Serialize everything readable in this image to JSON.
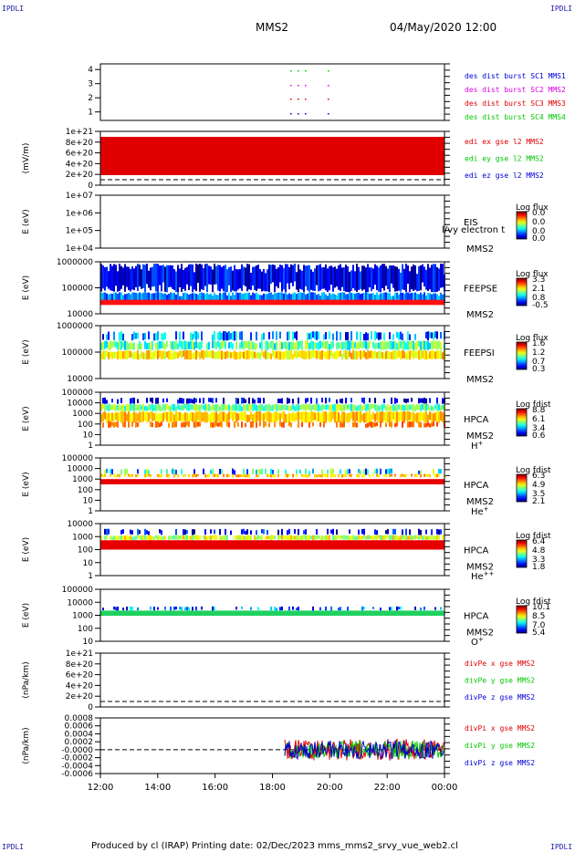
{
  "corner_label": "IPDLI",
  "header": {
    "spacecraft": "MMS2",
    "date": "04/May/2020 12:00"
  },
  "footer": {
    "text": "Produced by cl (IRAP)   Printing date: 02/Dec/2023   mms_mms2_srvy_vue_web2.cl"
  },
  "colors": {
    "red": "#e00000",
    "green": "#00c800",
    "blue": "#0000d8",
    "magenta": "#e000e0",
    "darkblue": "#0000c0"
  },
  "time_axis": {
    "tick_labels": [
      "12:00",
      "14:00",
      "16:00",
      "18:00",
      "20:00",
      "22:00",
      "00:00"
    ]
  },
  "chart_data": [
    {
      "type": "scatter",
      "id": "p1",
      "y_ticks": [
        "4",
        "3",
        "2",
        "1"
      ],
      "series": [
        {
          "name": "des dist burst SC1 MMS1",
          "color": "#0000d8"
        },
        {
          "name": "des dist burst SC2 MMS2",
          "color": "#e000e0"
        },
        {
          "name": "des dist burst SC3 MMS3",
          "color": "#e00000"
        },
        {
          "name": "des dist burst SC4 MMS4",
          "color": "#00c800"
        }
      ]
    },
    {
      "type": "line",
      "id": "p2",
      "ylabel": "(mV/m)",
      "y_ticks": [
        "1e+21",
        "8e+20",
        "6e+20",
        "4e+20",
        "2e+20",
        "0"
      ],
      "series": [
        {
          "name": "edi ex gse l2 MMS2",
          "color": "#e00000"
        },
        {
          "name": "edi ey gse l2 MMS2",
          "color": "#00c800"
        },
        {
          "name": "edi ez gse l2 MMS2",
          "color": "#0000d8"
        }
      ]
    },
    {
      "type": "heatmap",
      "id": "p3",
      "ylabel": "E (eV)",
      "y_ticks": [
        "1e+07",
        "1e+06",
        "1e+05",
        "1e+04"
      ],
      "instrument": "EIS",
      "spacecraft": "MMS2",
      "colorbar": {
        "title": "Log flux",
        "ticks": [
          "0.0",
          "0.0",
          "0.0",
          "0.0"
        ]
      },
      "overlay_text": "l/vy electron t"
    },
    {
      "type": "heatmap",
      "id": "p4",
      "ylabel": "E (eV)",
      "y_ticks": [
        "1000000",
        "100000",
        "10000"
      ],
      "instrument": "FEEPSE",
      "spacecraft": "MMS2",
      "colorbar": {
        "title": "Log flux",
        "ticks": [
          "3.3",
          "2.1",
          "0.8",
          "-0.5"
        ]
      }
    },
    {
      "type": "heatmap",
      "id": "p5",
      "ylabel": "E (eV)",
      "y_ticks": [
        "1000000",
        "100000",
        "10000"
      ],
      "instrument": "FEEPSI",
      "spacecraft": "MMS2",
      "colorbar": {
        "title": "Log flux",
        "ticks": [
          "1.6",
          "1.2",
          "0.7",
          "0.3"
        ]
      }
    },
    {
      "type": "heatmap",
      "id": "p6",
      "ylabel": "E (eV)",
      "y_ticks": [
        "100000",
        "10000",
        "1000",
        "100",
        "10",
        "1"
      ],
      "instrument": "HPCA",
      "spacecraft": "MMS2",
      "species": "H",
      "charge": "+",
      "colorbar": {
        "title": "Log fdist",
        "ticks": [
          "8.8",
          "6.1",
          "3.4",
          "0.6"
        ]
      }
    },
    {
      "type": "heatmap",
      "id": "p7",
      "ylabel": "E (eV)",
      "y_ticks": [
        "100000",
        "10000",
        "1000",
        "100",
        "10",
        "1"
      ],
      "instrument": "HPCA",
      "spacecraft": "MMS2",
      "species": "He",
      "charge": "+",
      "colorbar": {
        "title": "Log fdist",
        "ticks": [
          "6.3",
          "4.9",
          "3.5",
          "2.1"
        ]
      }
    },
    {
      "type": "heatmap",
      "id": "p8",
      "ylabel": "E (eV)",
      "y_ticks": [
        "10000",
        "1000",
        "100",
        "10",
        "1"
      ],
      "instrument": "HPCA",
      "spacecraft": "MMS2",
      "species": "He",
      "charge": "++",
      "colorbar": {
        "title": "Log fdist",
        "ticks": [
          "6.4",
          "4.8",
          "3.3",
          "1.8"
        ]
      }
    },
    {
      "type": "heatmap",
      "id": "p9",
      "ylabel": "E (eV)",
      "y_ticks": [
        "100000",
        "10000",
        "1000",
        "100",
        "10"
      ],
      "instrument": "HPCA",
      "spacecraft": "MMS2",
      "species": "O",
      "charge": "+",
      "colorbar": {
        "title": "Log fdist",
        "ticks": [
          "10.1",
          "8.5",
          "7.0",
          "5.4"
        ]
      }
    },
    {
      "type": "line",
      "id": "p10",
      "ylabel": "(nPa/km)",
      "y_ticks": [
        "1e+21",
        "8e+20",
        "6e+20",
        "4e+20",
        "2e+20",
        "0"
      ],
      "series": [
        {
          "name": "divPe x gse MMS2",
          "color": "#e00000"
        },
        {
          "name": "divPe y gse MMS2",
          "color": "#00c800"
        },
        {
          "name": "divPe z gse MMS2",
          "color": "#0000d8"
        }
      ]
    },
    {
      "type": "line",
      "id": "p11",
      "ylabel": "(nPa/km)",
      "y_ticks": [
        "0.0008",
        "0.0006",
        "0.0004",
        "0.0002",
        "-0.0000",
        "-0.0002",
        "-0.0004",
        "-0.0006"
      ],
      "series": [
        {
          "name": "divPi x gse MMS2",
          "color": "#e00000"
        },
        {
          "name": "divPi y gse MMS2",
          "color": "#00c800"
        },
        {
          "name": "divPi z gse MMS2",
          "color": "#0000d8"
        }
      ]
    }
  ]
}
